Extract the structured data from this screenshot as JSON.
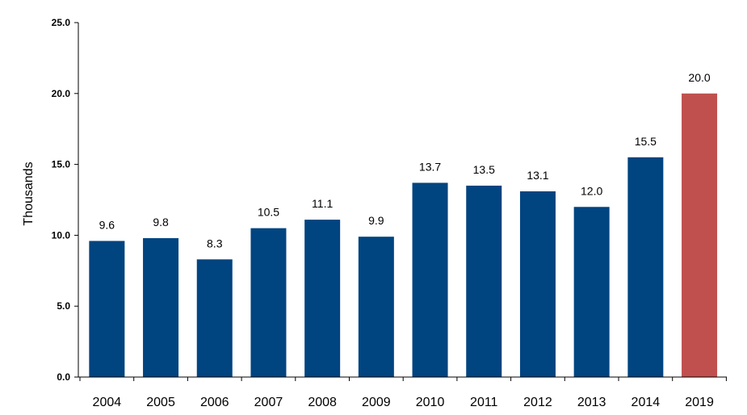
{
  "chart_data": {
    "type": "bar",
    "categories": [
      "2004",
      "2005",
      "2006",
      "2007",
      "2008",
      "2009",
      "2010",
      "2011",
      "2012",
      "2013",
      "2014",
      "2019"
    ],
    "values": [
      9.6,
      9.8,
      8.3,
      10.5,
      11.1,
      9.9,
      13.7,
      13.5,
      13.1,
      12.0,
      15.5,
      20.0
    ],
    "data_labels": [
      "9.6",
      "9.8",
      "8.3",
      "10.5",
      "11.1",
      "9.9",
      "13.7",
      "13.5",
      "13.1",
      "12.0",
      "15.5",
      "20.0"
    ],
    "ylabel": "Thousands",
    "ylim": [
      0,
      25
    ],
    "yticks": [
      "0.0",
      "5.0",
      "10.0",
      "15.0",
      "20.0",
      "25.0"
    ],
    "grid": false,
    "colors": {
      "default_bar": "#004480",
      "highlight_bar": "#c0504d"
    },
    "highlight_categories": [
      "2019"
    ]
  }
}
